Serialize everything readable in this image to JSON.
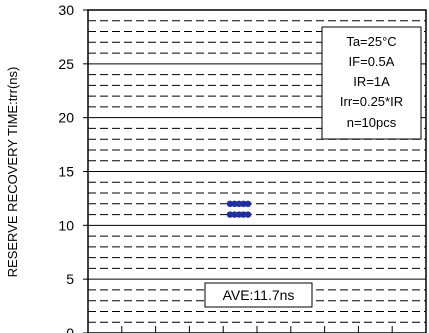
{
  "chart_data": {
    "type": "scatter",
    "ylabel": "RESERVE RECOVERY TIME:trr(ns)",
    "xlabel": "",
    "ylim": [
      0,
      30
    ],
    "y_ticks": [
      "0",
      "5",
      "10",
      "15",
      "20",
      "25",
      "30"
    ],
    "x_tick_count": 10,
    "grid": "solid major every 5, dashed minor every 1",
    "points": [
      {
        "y": 12
      },
      {
        "y": 12
      },
      {
        "y": 12
      },
      {
        "y": 12
      },
      {
        "y": 12
      },
      {
        "y": 11
      },
      {
        "y": 11
      },
      {
        "y": 11
      },
      {
        "y": 11
      },
      {
        "y": 11
      }
    ],
    "point_color": "#1f2f9f",
    "conditions_box": {
      "placement": "top-right",
      "lines": [
        "Ta=25°C",
        "IF=0.5A",
        "IR=1A",
        "Irr=0.25*IR",
        "n=10pcs"
      ]
    },
    "average_label": "AVE:11.7ns"
  }
}
